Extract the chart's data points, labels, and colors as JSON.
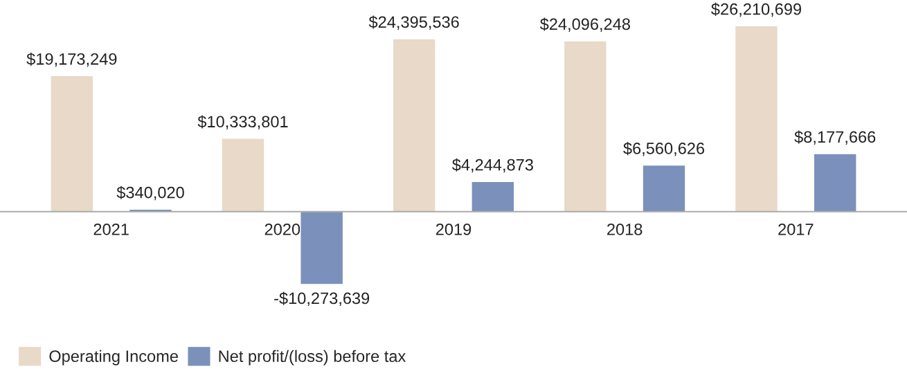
{
  "chart_data": {
    "type": "bar",
    "categories": [
      "2021",
      "2020",
      "2019",
      "2018",
      "2017"
    ],
    "series": [
      {
        "name": "Operating Income",
        "color": "#e8d9c8",
        "values": [
          19173249,
          10333801,
          24395536,
          24096248,
          26210699
        ],
        "value_labels": [
          "$19,173,249",
          "$10,333,801",
          "$24,395,536",
          "$24,096,248",
          "$26,210,699"
        ]
      },
      {
        "name": "Net profit/(loss) before tax",
        "color": "#7b90ba",
        "values": [
          340020,
          -10273639,
          4244873,
          6560626,
          8177666
        ],
        "value_labels": [
          "$340,020",
          "-$10,273,639",
          "$4,244,873",
          "$6,560,626",
          "$8,177,666"
        ]
      }
    ],
    "legend": "bottom left",
    "grid": false
  }
}
